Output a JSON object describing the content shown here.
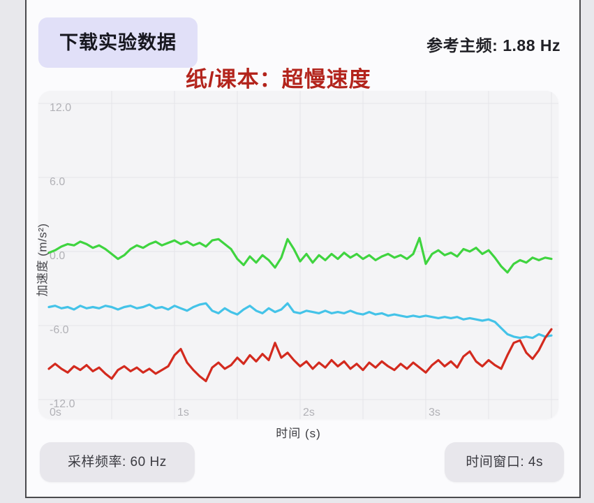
{
  "header": {
    "download_button": "下载实验数据",
    "freq_label": "参考主频:",
    "freq_value": "1.88 Hz",
    "annotation": "纸/课本：超慢速度"
  },
  "footer": {
    "sample_rate": "采样频率: 60 Hz",
    "time_window": "时间窗口: 4s"
  },
  "colors": {
    "annotation_red": "#b3241c",
    "button_bg": "#e1e0f8",
    "chip_bg": "#e8e7ec",
    "plot_bg": "#f4f4f6",
    "grid": "#e4e4e8",
    "tick_label": "#b1b1b6",
    "series_green": "#3fd43f",
    "series_cyan": "#44c3e8",
    "series_red": "#d32a1e"
  },
  "chart_data": {
    "type": "line",
    "title": "",
    "xlabel": "时间 (s)",
    "ylabel": "加速度 (m/s²)",
    "xlim": [
      0,
      4
    ],
    "ylim": [
      -12,
      12
    ],
    "legend": "none",
    "grid": "on",
    "x_ticks": [
      {
        "t": 0,
        "label": "0s"
      },
      {
        "t": 1,
        "label": "1s"
      },
      {
        "t": 2,
        "label": "2s"
      },
      {
        "t": 3,
        "label": "3s"
      }
    ],
    "y_ticks": [
      {
        "v": 12,
        "label": "12.0"
      },
      {
        "v": 6,
        "label": "6.0"
      },
      {
        "v": 0,
        "label": "0.0"
      },
      {
        "v": -6,
        "label": "-6.0"
      },
      {
        "v": -12,
        "label": "-12.0"
      }
    ],
    "x_gridlines": [
      0.5,
      1,
      1.5,
      2,
      2.5,
      3,
      3.5,
      4
    ],
    "y_gridlines": [
      12,
      6,
      0,
      -6,
      -12
    ],
    "t_step": 0.05,
    "series": [
      {
        "name": "green",
        "color": "#3fd43f",
        "values": [
          -0.1,
          0.1,
          0.4,
          0.6,
          0.5,
          0.8,
          0.6,
          0.3,
          0.5,
          0.2,
          -0.2,
          -0.6,
          -0.3,
          0.2,
          0.5,
          0.3,
          0.6,
          0.8,
          0.5,
          0.7,
          0.9,
          0.6,
          0.8,
          0.5,
          0.7,
          0.4,
          0.9,
          1.0,
          0.6,
          0.2,
          -0.6,
          -1.1,
          -0.4,
          -0.9,
          -0.3,
          -0.7,
          -1.3,
          -0.5,
          1.0,
          0.2,
          -0.8,
          -0.2,
          -0.9,
          -0.3,
          -0.7,
          -0.2,
          -0.6,
          -0.1,
          -0.5,
          -0.2,
          -0.6,
          -0.3,
          -0.7,
          -0.4,
          -0.2,
          -0.5,
          -0.3,
          -0.6,
          -0.2,
          1.1,
          -1.0,
          -0.2,
          0.1,
          -0.3,
          -0.1,
          -0.4,
          0.2,
          0.0,
          0.3,
          -0.2,
          0.1,
          -0.5,
          -1.2,
          -1.7,
          -1.0,
          -0.7,
          -0.9,
          -0.5,
          -0.7,
          -0.5,
          -0.6
        ]
      },
      {
        "name": "cyan",
        "color": "#44c3e8",
        "values": [
          -4.5,
          -4.4,
          -4.6,
          -4.5,
          -4.7,
          -4.4,
          -4.6,
          -4.5,
          -4.6,
          -4.4,
          -4.5,
          -4.7,
          -4.5,
          -4.4,
          -4.6,
          -4.5,
          -4.3,
          -4.6,
          -4.5,
          -4.7,
          -4.4,
          -4.6,
          -4.8,
          -4.5,
          -4.3,
          -4.2,
          -4.8,
          -5.0,
          -4.6,
          -4.9,
          -5.1,
          -4.7,
          -4.4,
          -4.8,
          -5.0,
          -4.6,
          -4.9,
          -4.7,
          -4.2,
          -4.9,
          -5.0,
          -4.8,
          -4.9,
          -5.0,
          -4.8,
          -5.0,
          -4.9,
          -5.0,
          -4.8,
          -5.0,
          -5.1,
          -4.9,
          -5.1,
          -5.0,
          -5.2,
          -5.1,
          -5.2,
          -5.3,
          -5.2,
          -5.3,
          -5.2,
          -5.3,
          -5.4,
          -5.3,
          -5.4,
          -5.3,
          -5.5,
          -5.4,
          -5.5,
          -5.6,
          -5.5,
          -5.7,
          -6.2,
          -6.7,
          -6.9,
          -7.0,
          -6.9,
          -7.0,
          -6.7,
          -6.9,
          -6.8
        ]
      },
      {
        "name": "red",
        "color": "#d32a1e",
        "values": [
          -9.5,
          -9.1,
          -9.5,
          -9.8,
          -9.3,
          -9.6,
          -9.2,
          -9.7,
          -9.4,
          -9.9,
          -10.3,
          -9.6,
          -9.3,
          -9.7,
          -9.4,
          -9.8,
          -9.5,
          -9.9,
          -9.6,
          -9.3,
          -8.4,
          -7.9,
          -9.0,
          -9.6,
          -10.1,
          -10.5,
          -9.4,
          -9.0,
          -9.5,
          -9.2,
          -8.6,
          -9.1,
          -8.4,
          -8.9,
          -8.3,
          -8.8,
          -7.4,
          -8.6,
          -8.2,
          -8.8,
          -9.3,
          -8.9,
          -9.5,
          -9.0,
          -9.4,
          -8.8,
          -9.3,
          -8.9,
          -9.5,
          -9.1,
          -9.6,
          -9.0,
          -9.4,
          -8.9,
          -9.3,
          -9.6,
          -9.1,
          -9.5,
          -9.0,
          -9.4,
          -9.8,
          -9.2,
          -8.8,
          -9.3,
          -8.9,
          -9.4,
          -8.5,
          -8.1,
          -8.9,
          -9.3,
          -8.8,
          -9.2,
          -9.5,
          -8.4,
          -7.4,
          -7.2,
          -8.2,
          -8.7,
          -8.0,
          -7.0,
          -6.3
        ]
      }
    ]
  }
}
